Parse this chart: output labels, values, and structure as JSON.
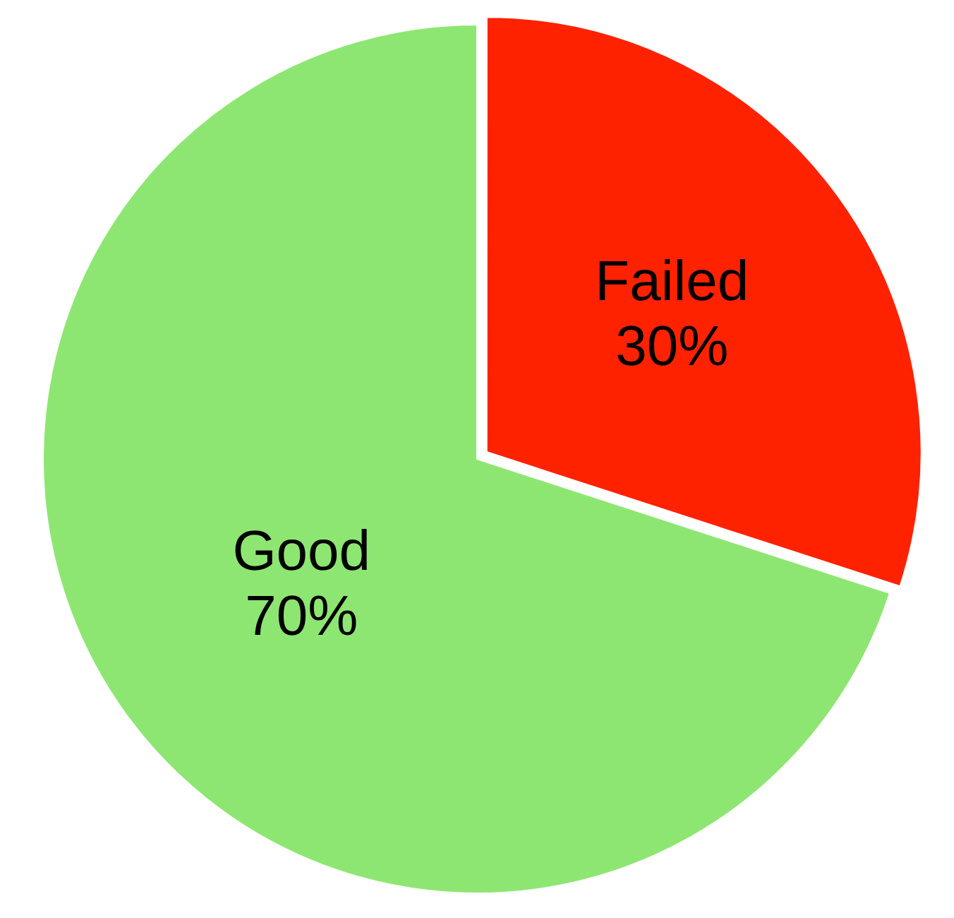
{
  "chart_data": {
    "type": "pie",
    "categories": [
      "Failed",
      "Good"
    ],
    "values": [
      30,
      70
    ],
    "colors": [
      "#ff2200",
      "#8ee672"
    ],
    "value_labels": [
      "30%",
      "70%"
    ],
    "legend": false
  }
}
